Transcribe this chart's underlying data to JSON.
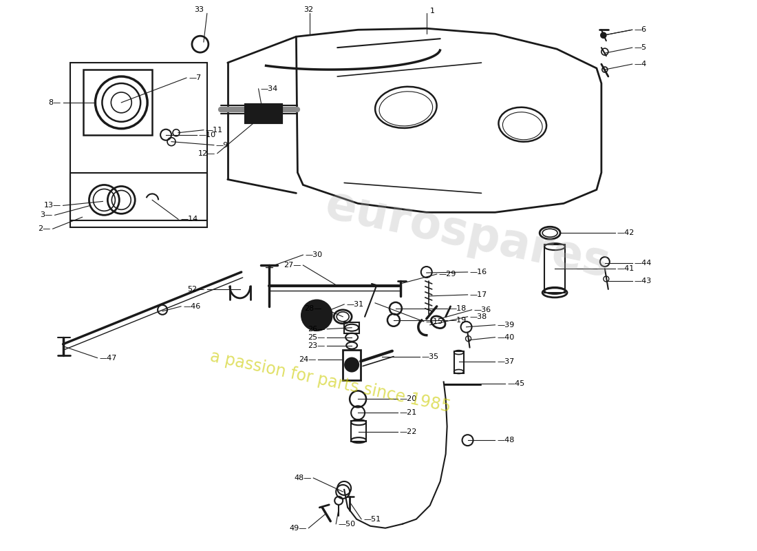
{
  "bg_color": "#ffffff",
  "line_color": "#1a1a1a",
  "watermark1": "eurospares",
  "watermark2": "a passion for parts since 1985",
  "wc1": "#b0b0b0",
  "wc2": "#cccc00"
}
